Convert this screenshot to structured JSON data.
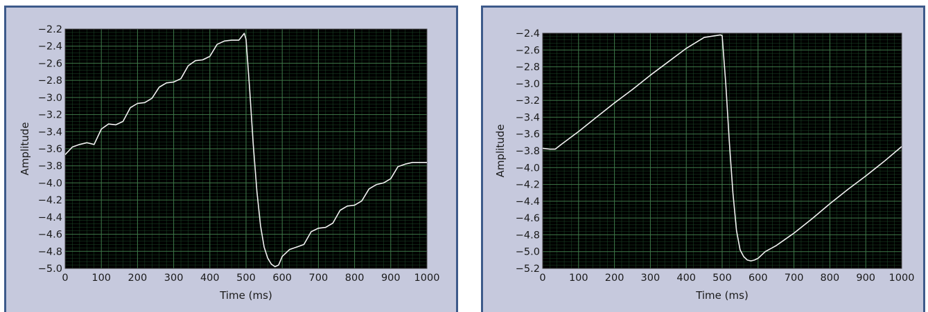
{
  "colors": {
    "panel_background": "#c6c9dd",
    "panel_border": "#3d5a8a",
    "plot_background": "#000000",
    "grid": "#3f7a4a",
    "trace": "#f2f2f2"
  },
  "chart_data": [
    {
      "type": "line",
      "xlabel": "Time (ms)",
      "ylabel": "Amplitude",
      "xlim": [
        0,
        1000
      ],
      "ylim": [
        -5.0,
        -2.2
      ],
      "xticks": [
        0,
        100,
        200,
        300,
        400,
        500,
        600,
        700,
        800,
        900,
        1000
      ],
      "yticks": [
        -2.2,
        -2.4,
        -2.6,
        -2.8,
        -3.0,
        -3.2,
        -3.4,
        -3.6,
        -3.8,
        -4.0,
        -4.2,
        -4.4,
        -4.6,
        -4.8,
        -5.0
      ],
      "grid": true,
      "series": [
        {
          "x": [
            0,
            20,
            40,
            60,
            80,
            100,
            120,
            140,
            160,
            180,
            200,
            220,
            240,
            260,
            280,
            300,
            320,
            340,
            360,
            380,
            400,
            420,
            440,
            460,
            480,
            495,
            500,
            510,
            520,
            530,
            540,
            550,
            560,
            570,
            580,
            590,
            600,
            620,
            640,
            660,
            680,
            700,
            720,
            740,
            760,
            780,
            800,
            820,
            840,
            860,
            880,
            900,
            920,
            940,
            960,
            980,
            1000
          ],
          "y": [
            -3.67,
            -3.58,
            -3.55,
            -3.53,
            -3.55,
            -3.37,
            -3.31,
            -3.32,
            -3.28,
            -3.12,
            -3.07,
            -3.06,
            -3.01,
            -2.88,
            -2.83,
            -2.82,
            -2.78,
            -2.63,
            -2.57,
            -2.56,
            -2.52,
            -2.38,
            -2.34,
            -2.33,
            -2.33,
            -2.25,
            -2.32,
            -2.9,
            -3.55,
            -4.1,
            -4.5,
            -4.75,
            -4.88,
            -4.95,
            -4.98,
            -4.96,
            -4.86,
            -4.78,
            -4.75,
            -4.72,
            -4.57,
            -4.53,
            -4.52,
            -4.47,
            -4.32,
            -4.27,
            -4.26,
            -4.21,
            -4.07,
            -4.02,
            -4.0,
            -3.95,
            -3.81,
            -3.78,
            -3.76,
            -3.76,
            -3.76
          ]
        }
      ]
    },
    {
      "type": "line",
      "xlabel": "Time (ms)",
      "ylabel": "Amplitude",
      "xlim": [
        0,
        1000
      ],
      "ylim": [
        -5.2,
        -2.4
      ],
      "xticks": [
        0,
        100,
        200,
        300,
        400,
        500,
        600,
        700,
        800,
        900,
        1000
      ],
      "yticks": [
        -2.4,
        -2.6,
        -2.8,
        -3.0,
        -3.2,
        -3.4,
        -3.6,
        -3.8,
        -4.0,
        -4.2,
        -4.4,
        -4.6,
        -4.8,
        -5.0,
        -5.2
      ],
      "grid": true,
      "series": [
        {
          "x": [
            0,
            20,
            35,
            50,
            100,
            150,
            200,
            250,
            300,
            350,
            400,
            450,
            495,
            500,
            510,
            520,
            530,
            540,
            550,
            560,
            570,
            580,
            590,
            600,
            620,
            650,
            700,
            750,
            800,
            850,
            900,
            950,
            1000
          ],
          "y": [
            -3.77,
            -3.78,
            -3.78,
            -3.73,
            -3.57,
            -3.4,
            -3.23,
            -3.07,
            -2.9,
            -2.74,
            -2.58,
            -2.45,
            -2.42,
            -2.43,
            -3.0,
            -3.7,
            -4.3,
            -4.75,
            -4.98,
            -5.06,
            -5.1,
            -5.11,
            -5.1,
            -5.08,
            -5.0,
            -4.93,
            -4.78,
            -4.61,
            -4.43,
            -4.26,
            -4.1,
            -3.93,
            -3.75
          ]
        }
      ]
    }
  ]
}
